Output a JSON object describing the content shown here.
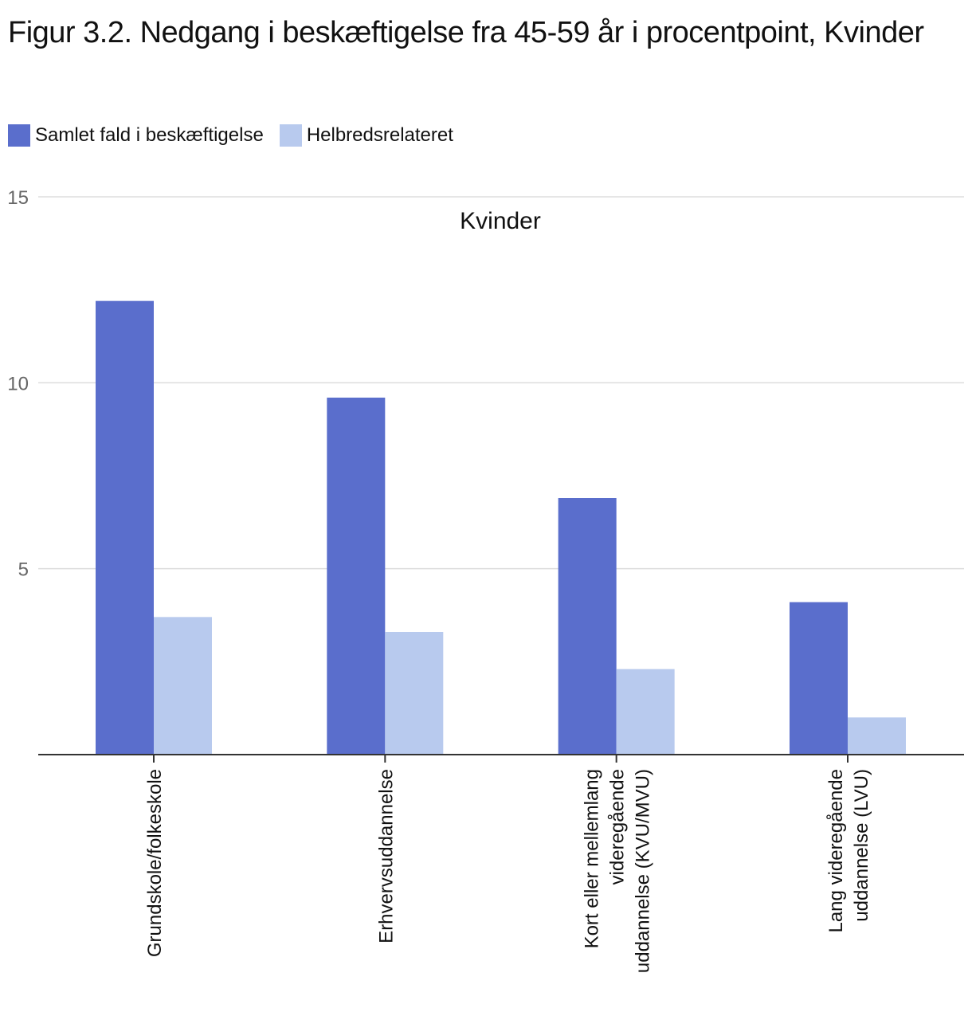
{
  "chart_data": {
    "type": "bar",
    "title": "Figur 3.2. Nedgang i beskæftigelse fra 45-59 år i procentpoint, Kvinder",
    "panel_title": "Kvinder",
    "categories": [
      [
        "Grundskole/folkeskole"
      ],
      [
        "Erhvervsuddannelse"
      ],
      [
        "Kort eller mellemlang",
        "videregående",
        "uddannelse (KVU/MVU)"
      ],
      [
        "Lang videregående",
        "uddannelse (LVU)"
      ]
    ],
    "series": [
      {
        "name": "Samlet fald i beskæftigelse",
        "color": "#5a6ecc",
        "values": [
          12.2,
          9.6,
          6.9,
          4.1
        ]
      },
      {
        "name": "Helbredsrelateret",
        "color": "#b8caee",
        "values": [
          3.7,
          3.3,
          2.3,
          1.0
        ]
      }
    ],
    "ylim": [
      0,
      15
    ],
    "yticks": [
      5,
      10,
      15
    ],
    "xlabel": "",
    "ylabel": "",
    "grid": true,
    "legend_position": "top-left"
  }
}
